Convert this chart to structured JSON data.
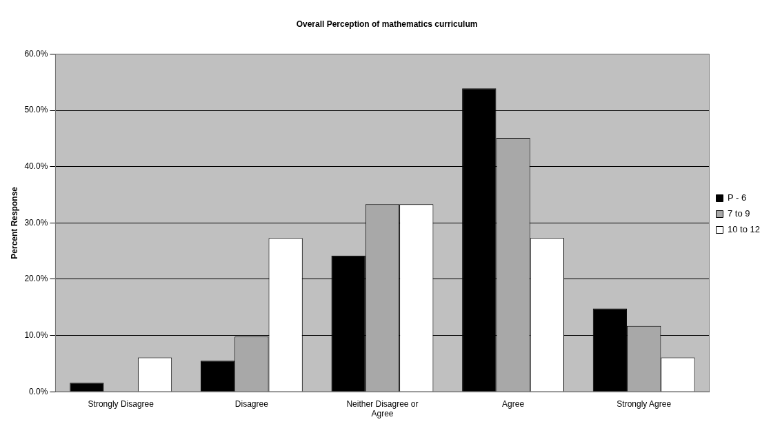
{
  "chart_data": {
    "type": "bar",
    "title": "Overall Perception of mathematics curriculum",
    "ylabel": "Percent Response",
    "categories": [
      "Strongly Disagree",
      "Disagree",
      "Neither Disagree or Agree",
      "Agree",
      "Strongly Agree"
    ],
    "series": [
      {
        "name": "P - 6",
        "color": "#000000",
        "values": [
          1.6,
          5.5,
          24.2,
          53.9,
          14.8
        ]
      },
      {
        "name": "7 to 9",
        "color": "#a8a8a8",
        "values": [
          0,
          9.8,
          33.3,
          45.1,
          11.7
        ]
      },
      {
        "name": "10 to 12",
        "color": "#ffffff",
        "values": [
          6.1,
          27.3,
          33.3,
          27.3,
          6.1
        ]
      }
    ],
    "ylim": [
      0,
      60
    ],
    "yticks": [
      {
        "value": 0,
        "label": "0.0%"
      },
      {
        "value": 10,
        "label": "10.0%"
      },
      {
        "value": 20,
        "label": "20.0%"
      },
      {
        "value": 30,
        "label": "30.0%"
      },
      {
        "value": 40,
        "label": "40.0%"
      },
      {
        "value": 50,
        "label": "50.0%"
      },
      {
        "value": 60,
        "label": "60.0%"
      }
    ],
    "grid": "y",
    "legend": "right"
  }
}
